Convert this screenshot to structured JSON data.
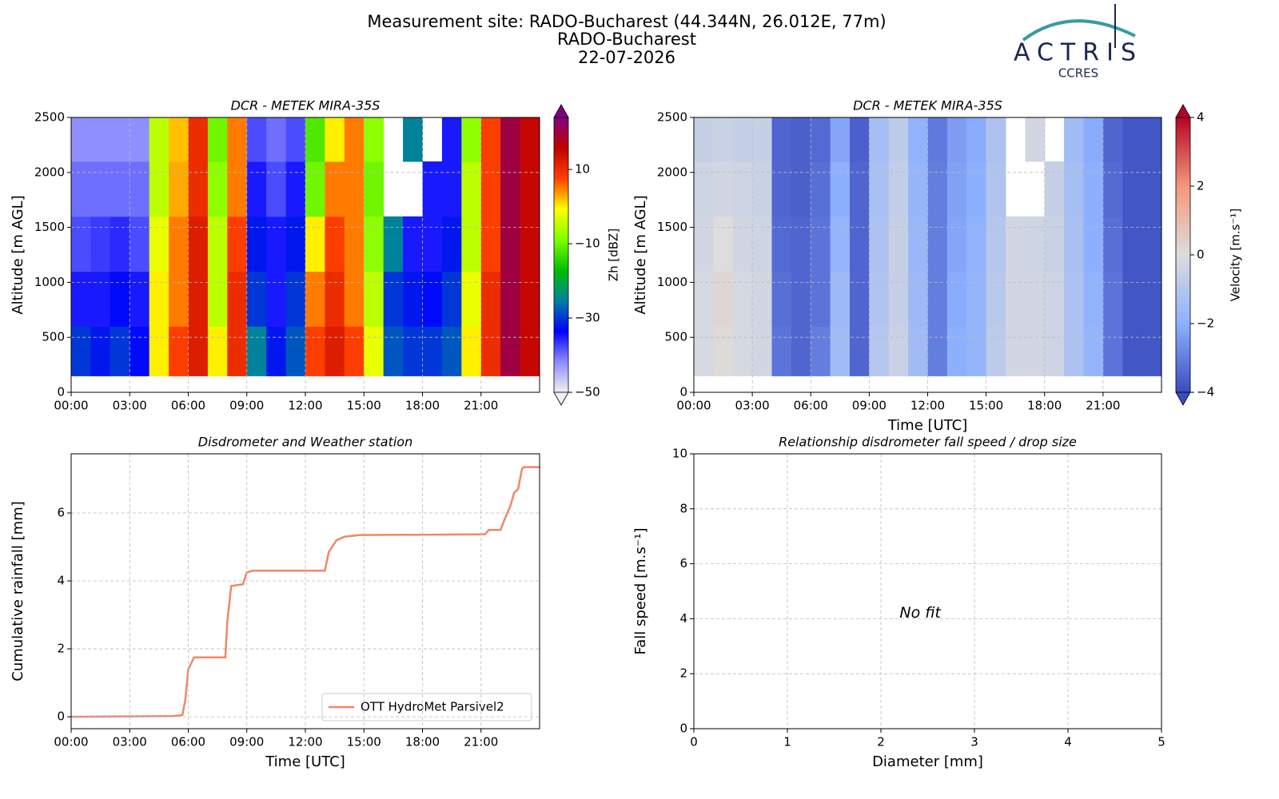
{
  "header": {
    "title": [
      "Measurement site: RADO-Bucharest (44.344N, 26.012E, 77m)",
      "RADO-Bucharest",
      "22-07-2026"
    ],
    "logo": {
      "name": "ACTRIS",
      "sub": "CCRES"
    }
  },
  "chart_data": [
    {
      "type": "heatmap",
      "title": "DCR - METEK MIRA-35S",
      "ylabel": "Altitude [m AGL]",
      "xlim": [
        0,
        24
      ],
      "ylim": [
        0,
        2500
      ],
      "xticks": [
        {
          "value": 0,
          "label": "00:00"
        },
        {
          "value": 3,
          "label": "03:00"
        },
        {
          "value": 6,
          "label": "06:00"
        },
        {
          "value": 9,
          "label": "09:00"
        },
        {
          "value": 12,
          "label": "12:00"
        },
        {
          "value": 15,
          "label": "15:00"
        },
        {
          "value": 18,
          "label": "18:00"
        },
        {
          "value": 21,
          "label": "21:00"
        }
      ],
      "yticks": [
        0,
        500,
        1000,
        1500,
        2000,
        2500
      ],
      "grid": true,
      "x_edges": [
        0,
        1,
        2,
        3,
        4,
        5,
        6,
        7,
        8,
        9,
        10,
        11,
        12,
        13,
        14,
        15,
        16,
        17,
        18,
        19,
        20,
        21,
        22,
        23,
        24
      ],
      "y_edges": [
        150,
        600,
        1100,
        1600,
        2100,
        2500
      ],
      "values": [
        [
          -30,
          -32,
          -30,
          -33,
          0,
          8,
          12,
          0,
          10,
          -25,
          -32,
          -28,
          8,
          12,
          8,
          -2,
          -28,
          -30,
          -30,
          -28,
          0,
          10,
          20,
          15
        ],
        [
          -35,
          -35,
          -33,
          -35,
          0,
          5,
          12,
          -5,
          10,
          -30,
          -35,
          -30,
          5,
          10,
          5,
          -5,
          -30,
          -32,
          -33,
          -30,
          -2,
          10,
          20,
          15
        ],
        [
          -38,
          -37,
          -36,
          -38,
          -2,
          5,
          12,
          -5,
          8,
          -32,
          -35,
          -32,
          0,
          8,
          5,
          -8,
          -25,
          -35,
          -35,
          -32,
          -5,
          8,
          20,
          15
        ],
        [
          -40,
          -40,
          -40,
          -40,
          -5,
          3,
          10,
          -8,
          5,
          -35,
          -38,
          -35,
          -10,
          5,
          5,
          -10,
          null,
          null,
          -35,
          -35,
          -5,
          8,
          20,
          15
        ],
        [
          -42,
          -42,
          -42,
          -42,
          -5,
          2,
          10,
          -10,
          5,
          -38,
          -40,
          -38,
          -12,
          0,
          5,
          -8,
          null,
          -25,
          null,
          -35,
          -8,
          8,
          20,
          15
        ]
      ],
      "colorbar": {
        "label": "Zh [dBZ]",
        "zlim": [
          -50,
          24
        ],
        "zticks": [
          {
            "value": -50,
            "label": "−50"
          },
          {
            "value": -30,
            "label": "−30"
          },
          {
            "value": -10,
            "label": "−10"
          },
          10
        ],
        "colormap": [
          "#f0f0f0",
          "#8c8cff",
          "#0000ff",
          "#0080a0",
          "#00c000",
          "#80ff00",
          "#ffff00",
          "#ff4000",
          "#c00000",
          "#800080"
        ]
      }
    },
    {
      "type": "heatmap",
      "title": "DCR - METEK MIRA-35S",
      "ylabel": "Altitude [m AGL]",
      "xlabel": "Time [UTC]",
      "xlim": [
        0,
        24
      ],
      "ylim": [
        0,
        2500
      ],
      "xticks": [
        {
          "value": 0,
          "label": "00:00"
        },
        {
          "value": 3,
          "label": "03:00"
        },
        {
          "value": 6,
          "label": "06:00"
        },
        {
          "value": 9,
          "label": "09:00"
        },
        {
          "value": 12,
          "label": "12:00"
        },
        {
          "value": 15,
          "label": "15:00"
        },
        {
          "value": 18,
          "label": "18:00"
        },
        {
          "value": 21,
          "label": "21:00"
        }
      ],
      "yticks": [
        0,
        500,
        1000,
        1500,
        2000,
        2500
      ],
      "grid": true,
      "x_edges": [
        0,
        1,
        2,
        3,
        4,
        5,
        6,
        7,
        8,
        9,
        10,
        11,
        12,
        13,
        14,
        15,
        16,
        17,
        18,
        19,
        20,
        21,
        22,
        23,
        24
      ],
      "y_edges": [
        150,
        600,
        1100,
        1600,
        2100,
        2500
      ],
      "values": [
        [
          -0.2,
          0.1,
          -0.2,
          -0.3,
          -3.2,
          -3.5,
          -3,
          -1.5,
          -3.5,
          -1,
          -0.5,
          -1.5,
          -3,
          -2,
          -1.8,
          -0.8,
          -0.3,
          -0.3,
          -0.4,
          -1.2,
          -1.8,
          -3.2,
          -3.8,
          -3.8
        ],
        [
          -0.2,
          0.2,
          -0.2,
          -0.3,
          -3.3,
          -3.5,
          -3.2,
          -1.6,
          -3.5,
          -1.1,
          -0.6,
          -1.6,
          -3,
          -2.1,
          -1.8,
          -0.9,
          -0.3,
          -0.3,
          -0.4,
          -1.2,
          -1.9,
          -3.2,
          -3.8,
          -3.8
        ],
        [
          -0.3,
          0,
          -0.3,
          -0.4,
          -3.4,
          -3.5,
          -3.2,
          -1.8,
          -3.5,
          -1.2,
          -0.6,
          -1.7,
          -3,
          -2.2,
          -1.9,
          -1,
          -0.3,
          -0.4,
          -0.5,
          -1.3,
          -2,
          -3.3,
          -3.8,
          -3.8
        ],
        [
          -0.4,
          -0.3,
          -0.4,
          -0.5,
          -3.5,
          -3.6,
          -3.3,
          -2,
          -3.5,
          -1.3,
          -0.7,
          -1.8,
          -3,
          -2.3,
          -2,
          -1.1,
          null,
          null,
          -0.6,
          -1.4,
          -2,
          -3.4,
          -3.8,
          -3.8
        ],
        [
          -0.6,
          -0.5,
          -0.6,
          -0.6,
          -3.5,
          -3.6,
          -3.4,
          -2.2,
          -3.6,
          -1.4,
          -0.8,
          -1.9,
          -3.1,
          -2.4,
          -2.1,
          -1.2,
          null,
          -0.3,
          null,
          -1.5,
          -2.1,
          -3.5,
          -3.8,
          -3.8
        ]
      ],
      "colorbar": {
        "label": "Velocity [m.s⁻¹]",
        "zlim": [
          -4,
          4
        ],
        "zticks": [
          {
            "value": -4,
            "label": "−4"
          },
          {
            "value": -2,
            "label": "−2"
          },
          0,
          2,
          4
        ],
        "colormap": [
          "#3b4cc0",
          "#8db0fe",
          "#dddddd",
          "#f4987a",
          "#b40426"
        ]
      }
    },
    {
      "type": "line",
      "title": "Disdrometer and Weather station",
      "xlabel": "Time [UTC]",
      "ylabel": "Cumulative rainfall [mm]",
      "xlim": [
        0,
        24
      ],
      "ylim": [
        -0.35,
        7.74
      ],
      "xticks": [
        {
          "value": 0,
          "label": "00:00"
        },
        {
          "value": 3,
          "label": "03:00"
        },
        {
          "value": 6,
          "label": "06:00"
        },
        {
          "value": 9,
          "label": "09:00"
        },
        {
          "value": 12,
          "label": "12:00"
        },
        {
          "value": 15,
          "label": "15:00"
        },
        {
          "value": 18,
          "label": "18:00"
        },
        {
          "value": 21,
          "label": "21:00"
        }
      ],
      "yticks": [
        0,
        2,
        4,
        6
      ],
      "grid": true,
      "legend": "lower right",
      "x": [
        0,
        5.2,
        5.7,
        5.85,
        6.0,
        6.3,
        7.9,
        8.0,
        8.2,
        8.8,
        9.0,
        9.3,
        13.0,
        13.2,
        13.6,
        14.0,
        14.8,
        21.2,
        21.4,
        22.0,
        22.2,
        22.5,
        22.7,
        22.9,
        23.1,
        23.2,
        24
      ],
      "series": [
        {
          "name": "OTT HydroMet Parsivel2",
          "color": "#ee8866",
          "values": [
            0,
            0.02,
            0.05,
            0.5,
            1.4,
            1.75,
            1.75,
            2.8,
            3.85,
            3.9,
            4.25,
            4.3,
            4.3,
            4.85,
            5.2,
            5.3,
            5.35,
            5.37,
            5.5,
            5.5,
            5.8,
            6.2,
            6.6,
            6.7,
            7.3,
            7.35,
            7.35
          ]
        }
      ]
    },
    {
      "type": "scatter",
      "title": "Relationship disdrometer fall speed / drop size",
      "xlabel": "Diameter [mm]",
      "ylabel": "Fall speed [m.s⁻¹]",
      "xlim": [
        0,
        5
      ],
      "ylim": [
        0,
        10
      ],
      "xticks": [
        0,
        1,
        2,
        3,
        4,
        5
      ],
      "yticks": [
        0,
        2,
        4,
        6,
        8,
        10
      ],
      "grid": true,
      "annotation": "No fit",
      "x": [],
      "values": []
    }
  ]
}
